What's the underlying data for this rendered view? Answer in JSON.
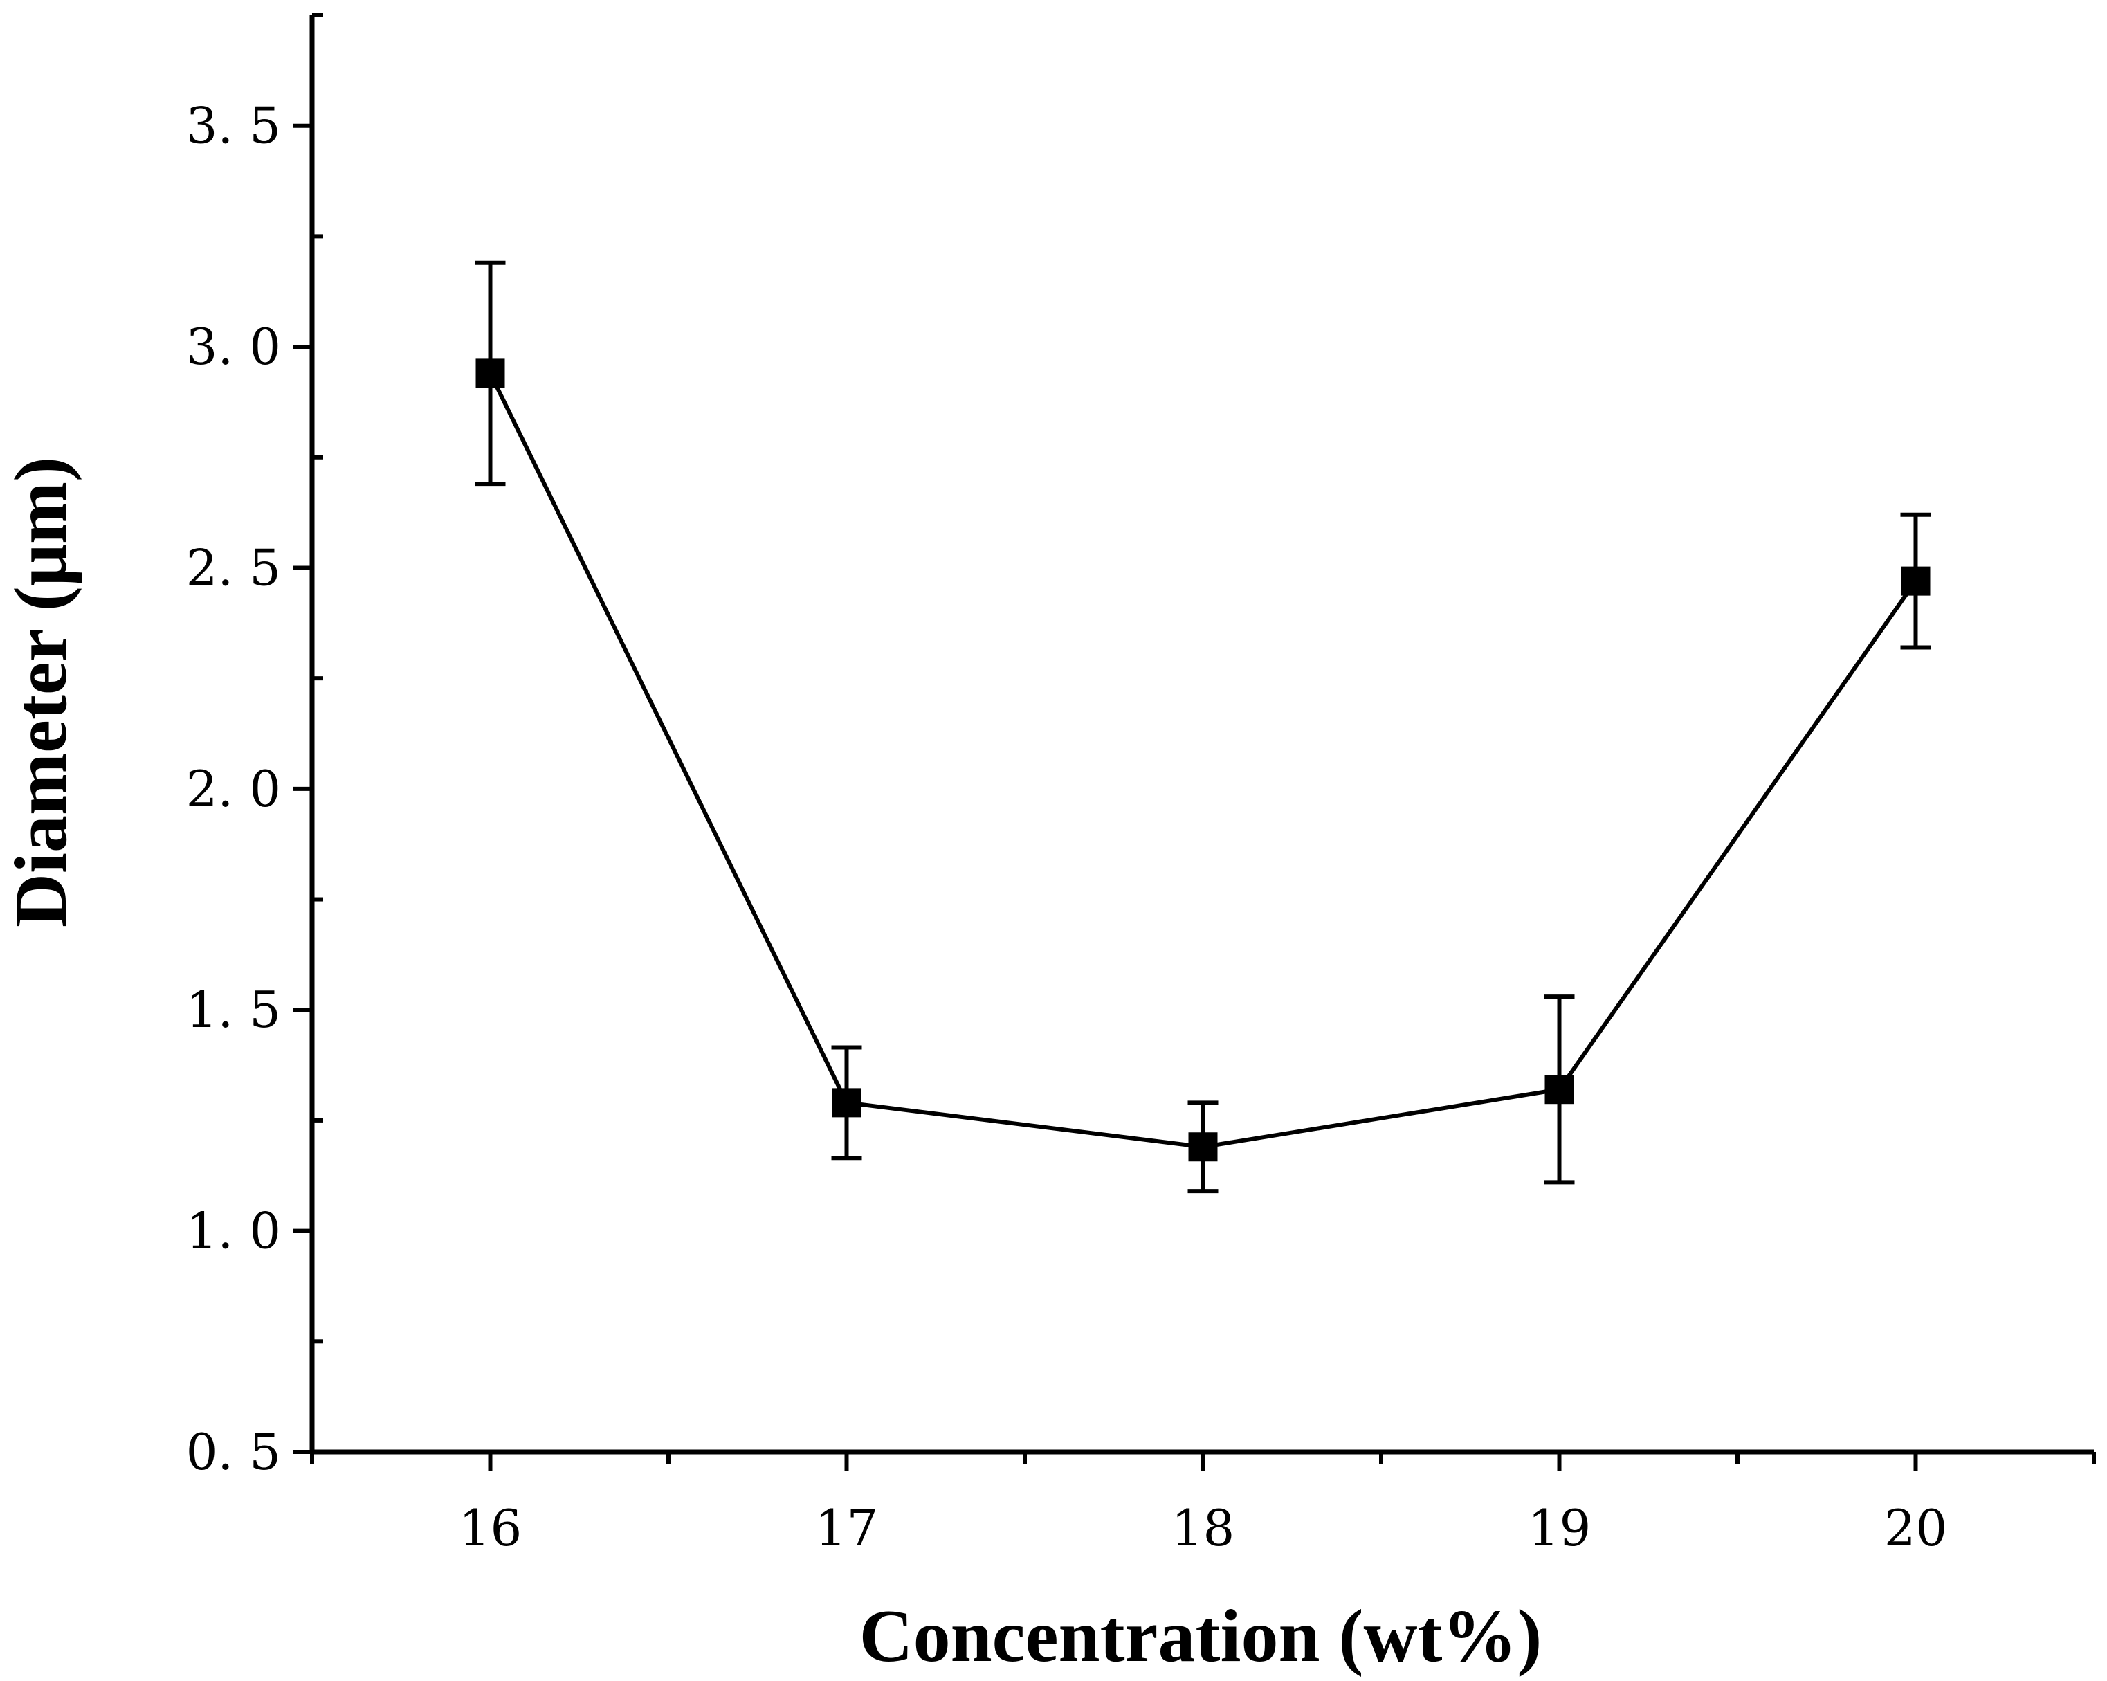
{
  "chart_data": {
    "type": "line",
    "title": "",
    "xlabel": "Concentration (wt%)",
    "ylabel": "Diameter (μm)",
    "xlim": [
      15.5,
      20.5
    ],
    "ylim": [
      0.5,
      3.75
    ],
    "x_ticks": [
      16,
      17,
      18,
      19,
      20
    ],
    "x_tick_labels": [
      "16",
      "17",
      "18",
      "19",
      "20"
    ],
    "y_ticks": [
      0.5,
      1.0,
      1.5,
      2.0,
      2.5,
      3.0,
      3.5
    ],
    "y_tick_labels": [
      "0. 5",
      "1. 0",
      "1. 5",
      "2. 0",
      "2. 5",
      "3. 0",
      "3. 5"
    ],
    "grid": false,
    "series": [
      {
        "name": "Diameter",
        "x": [
          16,
          17,
          18,
          19,
          20
        ],
        "values": [
          2.94,
          1.29,
          1.19,
          1.32,
          2.47
        ],
        "error": [
          0.25,
          0.125,
          0.1,
          0.21,
          0.15
        ]
      }
    ],
    "colors": {
      "line": "#000000",
      "marker": "#000000",
      "axis": "#000000"
    }
  }
}
